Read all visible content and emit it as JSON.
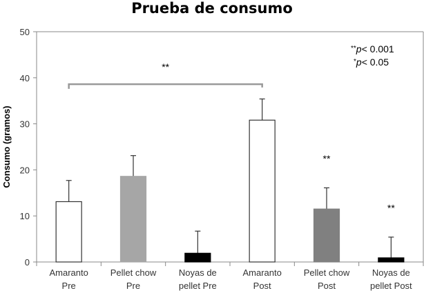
{
  "chart_data": {
    "type": "bar",
    "title": "Prueba de consumo",
    "xlabel": "",
    "ylabel": "Consumo (gramos)",
    "ylim": [
      0,
      50
    ],
    "yticks": [
      0,
      10,
      20,
      30,
      40,
      50
    ],
    "grid": false,
    "categories": [
      [
        "Amaranto",
        "Pre"
      ],
      [
        "Pellet chow",
        "Pre"
      ],
      [
        "Noyas de",
        "pellet Pre"
      ],
      [
        "Amaranto",
        "Post"
      ],
      [
        "Pellet chow",
        "Post"
      ],
      [
        "Noyas de",
        "pellet Post"
      ]
    ],
    "values": [
      13.1,
      18.6,
      1.9,
      30.8,
      11.5,
      0.9
    ],
    "error_upper": [
      17.7,
      23.1,
      6.7,
      35.4,
      16.1,
      5.4
    ],
    "colors": [
      "#ffffff",
      "#a6a6a6",
      "#000000",
      "#ffffff",
      "#808080",
      "#000000"
    ],
    "significance": {
      "bracket": {
        "from": 0,
        "to": 3,
        "label": "**"
      },
      "bar_marks": [
        {
          "bar": 4,
          "label": "**"
        },
        {
          "bar": 5,
          "label": "**"
        }
      ]
    },
    "legend_notes": [
      {
        "stars": "**",
        "p": "p",
        "text": "< 0.001"
      },
      {
        "stars": "*",
        "p": "p",
        "text": "< 0.05"
      }
    ]
  }
}
